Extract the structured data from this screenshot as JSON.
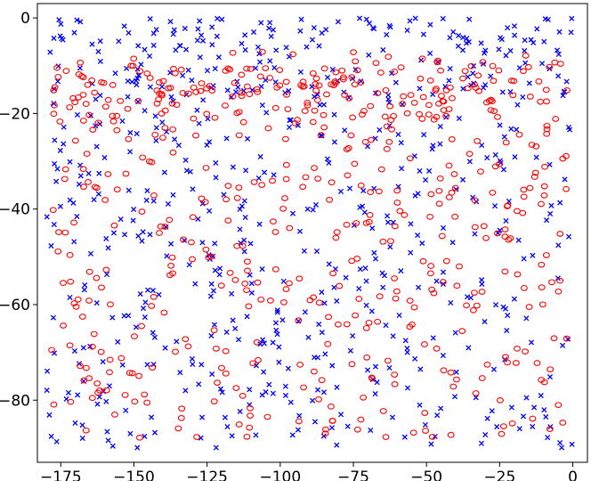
{
  "chart_data": {
    "type": "scatter",
    "title": "",
    "xlabel": "",
    "ylabel": "",
    "xlim": [
      -183,
      5
    ],
    "ylim": [
      -93,
      3
    ],
    "x_ticks": [
      -175,
      -150,
      -125,
      -100,
      -75,
      -50,
      -25,
      0
    ],
    "y_ticks": [
      0,
      -20,
      -40,
      -60,
      -80
    ],
    "x_tick_labels": [
      "−175",
      "−150",
      "−125",
      "−100",
      "−75",
      "−50",
      "−25",
      "0"
    ],
    "y_tick_labels": [
      "0",
      "−20",
      "−40",
      "−60",
      "−80"
    ],
    "grid": false,
    "legend": "none",
    "series": [
      {
        "marker": "x",
        "color": "#0000ff",
        "seed": 7,
        "count": 640,
        "x_range": [
          -180,
          0
        ],
        "y_range": [
          -90,
          0
        ],
        "sample_points": [
          {
            "x": -175.6,
            "y": -0.4
          },
          {
            "x": -168.3,
            "y": -0.8
          },
          {
            "x": -136.2,
            "y": -2.5
          },
          {
            "x": -35.4,
            "y": -0.3
          },
          {
            "x": -70.5,
            "y": -0.3
          },
          {
            "x": -48.4,
            "y": -89.2
          },
          {
            "x": -157.2,
            "y": -89.6
          },
          {
            "x": -4.4,
            "y": -88.9
          },
          {
            "x": -1.4,
            "y": -22.9
          },
          {
            "x": -96.9,
            "y": -22.9
          },
          {
            "x": -140.4,
            "y": -14.4
          },
          {
            "x": -177.1,
            "y": -25.6
          },
          {
            "x": -178.3,
            "y": -47.7
          },
          {
            "x": -178.9,
            "y": -83.1
          },
          {
            "x": -102.4,
            "y": -2.5
          }
        ]
      },
      {
        "marker": "o",
        "color": "#ff0000",
        "seed": 13,
        "count": 560,
        "x_range": [
          -178,
          -2
        ],
        "y_range": [
          -88,
          -7
        ],
        "sample_points": [
          {
            "x": -128.5,
            "y": -87.7
          },
          {
            "x": -63.9,
            "y": -87.7
          },
          {
            "x": -54.4,
            "y": -86.8
          },
          {
            "x": -168.8,
            "y": -11.8
          },
          {
            "x": -97.4,
            "y": -19.1
          },
          {
            "x": -77.2,
            "y": -27.5
          },
          {
            "x": -45.7,
            "y": -36.2
          },
          {
            "x": -178.1,
            "y": -69.5
          },
          {
            "x": -2.1,
            "y": -67.1
          },
          {
            "x": -10.6,
            "y": -56.4
          },
          {
            "x": -165.3,
            "y": -75.4
          },
          {
            "x": -26.9,
            "y": -19.5
          },
          {
            "x": -115.6,
            "y": -13.6
          },
          {
            "x": -69.6,
            "y": -42.7
          },
          {
            "x": -8.8,
            "y": -23.3
          }
        ]
      }
    ]
  }
}
